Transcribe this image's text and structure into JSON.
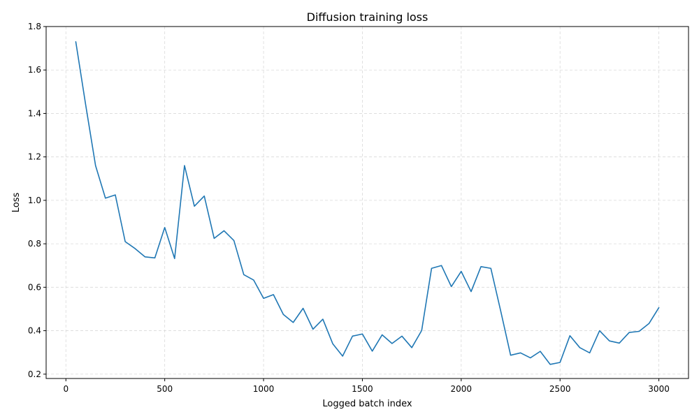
{
  "chart_data": {
    "type": "line",
    "title": "Diffusion training loss",
    "xlabel": "Logged batch index",
    "ylabel": "Loss",
    "xlim": [
      -100,
      3150
    ],
    "ylim": [
      0.18,
      1.8
    ],
    "xticks": [
      0,
      500,
      1000,
      1500,
      2000,
      2500,
      3000
    ],
    "yticks": [
      0.2,
      0.4,
      0.6,
      0.8,
      1.0,
      1.2,
      1.4,
      1.6,
      1.8
    ],
    "grid": true,
    "color": "#1f77b4",
    "series": [
      {
        "x": [
          50,
          100,
          150,
          200,
          250,
          300,
          350,
          400,
          450,
          500,
          550,
          600,
          650,
          700,
          750,
          800,
          850,
          900,
          950,
          1000,
          1050,
          1100,
          1150,
          1200,
          1250,
          1300,
          1350,
          1400,
          1450,
          1500,
          1550,
          1600,
          1650,
          1700,
          1750,
          1800,
          1850,
          1900,
          1950,
          2000,
          2050,
          2100,
          2150,
          2200,
          2250,
          2300,
          2350,
          2400,
          2450,
          2500,
          2550,
          2600,
          2650,
          2700,
          2750,
          2800,
          2850,
          2900,
          2950,
          3000
        ],
        "values": [
          1.73,
          1.44,
          1.16,
          1.01,
          1.025,
          0.81,
          0.778,
          0.74,
          0.735,
          0.875,
          0.732,
          1.16,
          0.973,
          1.02,
          0.825,
          0.86,
          0.815,
          0.658,
          0.633,
          0.549,
          0.566,
          0.475,
          0.438,
          0.503,
          0.407,
          0.453,
          0.34,
          0.283,
          0.375,
          0.385,
          0.306,
          0.381,
          0.341,
          0.375,
          0.322,
          0.401,
          0.687,
          0.7,
          0.603,
          0.673,
          0.58,
          0.695,
          0.687,
          0.49,
          0.287,
          0.298,
          0.275,
          0.305,
          0.245,
          0.254,
          0.377,
          0.322,
          0.298,
          0.4,
          0.353,
          0.343,
          0.392,
          0.397,
          0.433,
          0.506
        ]
      }
    ]
  }
}
